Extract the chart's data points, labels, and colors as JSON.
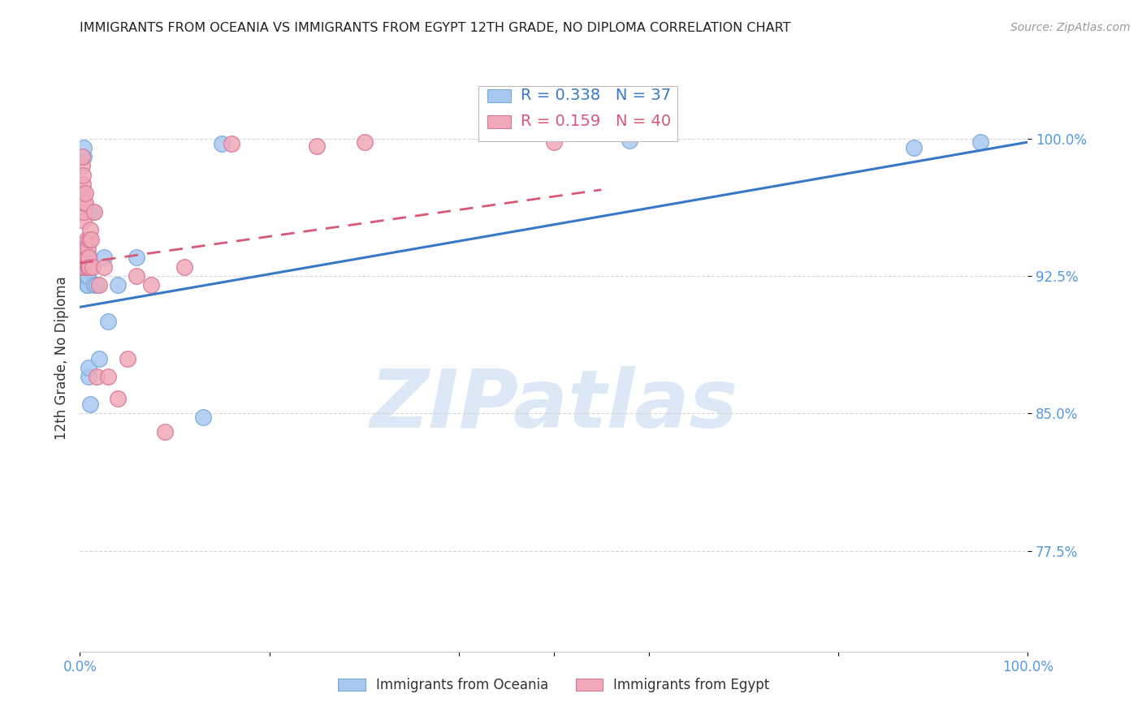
{
  "title": "IMMIGRANTS FROM OCEANIA VS IMMIGRANTS FROM EGYPT 12TH GRADE, NO DIPLOMA CORRELATION CHART",
  "source": "Source: ZipAtlas.com",
  "ylabel": "12th Grade, No Diploma",
  "ytick_labels": [
    "100.0%",
    "92.5%",
    "85.0%",
    "77.5%"
  ],
  "ytick_values": [
    1.0,
    0.925,
    0.85,
    0.775
  ],
  "legend_blue_r": "0.338",
  "legend_blue_n": "37",
  "legend_pink_r": "0.159",
  "legend_pink_n": "40",
  "blue_color": "#a8c8f0",
  "pink_color": "#f0a8b8",
  "blue_edge_color": "#7aaad8",
  "pink_edge_color": "#d87898",
  "blue_line_color": "#3878c8",
  "pink_line_color": "#d85878",
  "axis_label_color": "#5599dd",
  "grid_color": "#cccccc",
  "title_color": "#222222",
  "source_color": "#999999",
  "watermark_text": "ZIPatlas",
  "watermark_color": "#dce8f5",
  "blue_scatter_x": [
    0.001,
    0.002,
    0.002,
    0.003,
    0.003,
    0.003,
    0.004,
    0.004,
    0.005,
    0.005,
    0.005,
    0.006,
    0.006,
    0.006,
    0.007,
    0.007,
    0.008,
    0.008,
    0.009,
    0.009,
    0.01,
    0.01,
    0.011,
    0.012,
    0.013,
    0.015,
    0.018,
    0.02,
    0.025,
    0.03,
    0.04,
    0.06,
    0.13,
    0.58,
    0.88,
    0.95,
    0.15
  ],
  "blue_scatter_y": [
    0.93,
    0.925,
    0.935,
    0.93,
    0.935,
    0.94,
    0.99,
    0.995,
    0.93,
    0.935,
    0.94,
    0.925,
    0.93,
    0.935,
    0.92,
    0.925,
    0.92,
    0.925,
    0.87,
    0.875,
    0.93,
    0.935,
    0.855,
    0.96,
    0.96,
    0.92,
    0.92,
    0.88,
    0.935,
    0.9,
    0.92,
    0.935,
    0.848,
    0.999,
    0.995,
    0.998,
    0.997
  ],
  "pink_scatter_x": [
    0.001,
    0.001,
    0.002,
    0.002,
    0.003,
    0.003,
    0.003,
    0.004,
    0.004,
    0.004,
    0.005,
    0.005,
    0.006,
    0.006,
    0.007,
    0.007,
    0.008,
    0.008,
    0.009,
    0.009,
    0.01,
    0.01,
    0.011,
    0.012,
    0.013,
    0.015,
    0.018,
    0.02,
    0.025,
    0.03,
    0.04,
    0.06,
    0.09,
    0.11,
    0.16,
    0.25,
    0.3,
    0.05,
    0.075,
    0.5
  ],
  "pink_scatter_y": [
    0.93,
    0.94,
    0.985,
    0.99,
    0.97,
    0.975,
    0.98,
    0.955,
    0.96,
    0.965,
    0.93,
    0.94,
    0.965,
    0.97,
    0.935,
    0.945,
    0.93,
    0.94,
    0.93,
    0.935,
    0.93,
    0.945,
    0.95,
    0.945,
    0.93,
    0.96,
    0.87,
    0.92,
    0.93,
    0.87,
    0.858,
    0.925,
    0.84,
    0.93,
    0.997,
    0.996,
    0.998,
    0.88,
    0.92,
    0.998
  ],
  "blue_line_x0": 0.0,
  "blue_line_x1": 1.0,
  "blue_line_y0": 0.908,
  "blue_line_y1": 0.998,
  "pink_line_x0": 0.0,
  "pink_line_x1": 0.55,
  "pink_line_y0": 0.932,
  "pink_line_y1": 0.972,
  "xlim": [
    0.0,
    1.0
  ],
  "ylim": [
    0.72,
    1.04
  ],
  "bottom_legend_labels": [
    "Immigrants from Oceania",
    "Immigrants from Egypt"
  ]
}
